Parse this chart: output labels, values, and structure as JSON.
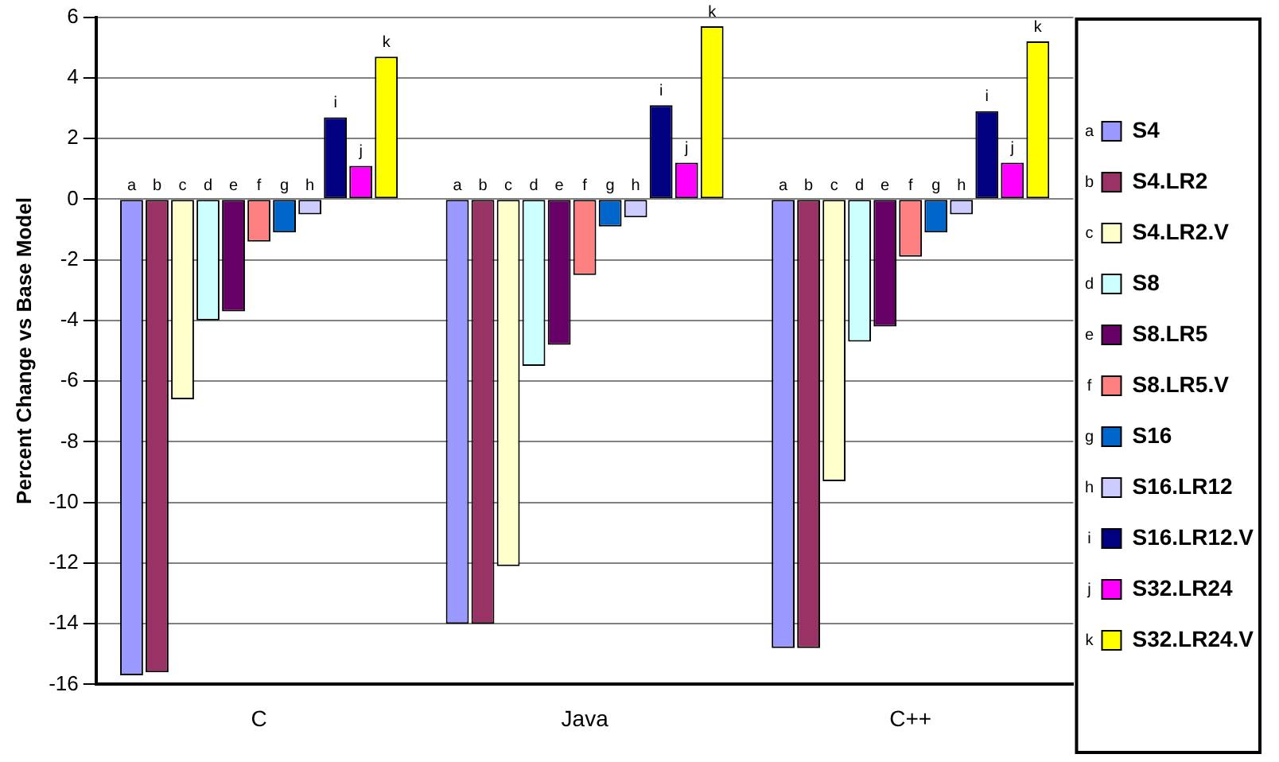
{
  "chart_data": {
    "type": "bar",
    "ylabel": "Percent Change vs Base Model",
    "categories": [
      "C",
      "Java",
      "C++"
    ],
    "series": [
      {
        "name": "S4",
        "color": "#9999ff",
        "values": [
          -15.7,
          -14.0,
          -14.8
        ]
      },
      {
        "name": "S4.LR2",
        "color": "#993366",
        "values": [
          -15.6,
          -14.0,
          -14.8
        ]
      },
      {
        "name": "S4.LR2.V",
        "color": "#ffffcc",
        "values": [
          -6.6,
          -12.1,
          -9.3
        ]
      },
      {
        "name": "S8",
        "color": "#ccffff",
        "values": [
          -4.0,
          -5.5,
          -4.7
        ]
      },
      {
        "name": "S8.LR5",
        "color": "#660066",
        "values": [
          -3.7,
          -4.8,
          -4.2
        ]
      },
      {
        "name": "S8.LR5.V",
        "color": "#ff8080",
        "values": [
          -1.4,
          -2.5,
          -1.9
        ]
      },
      {
        "name": "S16",
        "color": "#0066cc",
        "values": [
          -1.1,
          -0.9,
          -1.1
        ]
      },
      {
        "name": "S16.LR12",
        "color": "#ccccff",
        "values": [
          -0.5,
          -0.6,
          -0.5
        ]
      },
      {
        "name": "S16.LR12.V",
        "color": "#000080",
        "values": [
          2.7,
          3.1,
          2.9
        ]
      },
      {
        "name": "S32.LR24",
        "color": "#ff00ff",
        "values": [
          1.1,
          1.2,
          1.2
        ]
      },
      {
        "name": "S32.LR24.V",
        "color": "#ffff00",
        "values": [
          4.7,
          5.7,
          5.2
        ]
      }
    ],
    "annotations": [
      "a",
      "b",
      "c",
      "d",
      "e",
      "f",
      "g",
      "h",
      "i",
      "j",
      "k"
    ],
    "ylim": [
      -16,
      6
    ],
    "yticks": [
      -16,
      -14,
      -12,
      -10,
      -8,
      -6,
      -4,
      -2,
      0,
      2,
      4,
      6
    ],
    "grid": "y",
    "legend": "right"
  }
}
